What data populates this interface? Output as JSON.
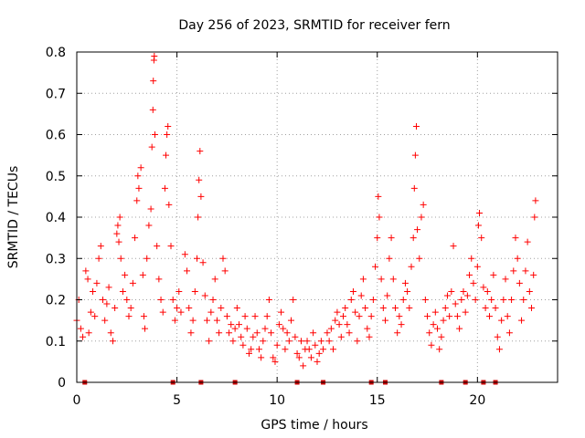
{
  "chart_data": {
    "type": "scatter",
    "title": "Day 256 of 2023, SRMTID for receiver fern",
    "xlabel": "GPS time / hours",
    "ylabel": "SRMTID / TECUs",
    "xlim": [
      0,
      24
    ],
    "ylim": [
      0,
      0.8
    ],
    "xticks": [
      0,
      5,
      10,
      15,
      20
    ],
    "xtick_labels": [
      "0",
      "5",
      "10",
      "15",
      "20"
    ],
    "yticks": [
      0,
      0.1,
      0.2,
      0.3,
      0.4,
      0.5,
      0.6,
      0.7,
      0.8
    ],
    "ytick_labels": [
      "0",
      "0.1",
      "0.2",
      "0.3",
      "0.4",
      "0.5",
      "0.6",
      "0.7",
      "0.8"
    ],
    "grid": true,
    "marker": "plus",
    "color": "#ff0000",
    "flag_color": "#cc0000",
    "baseline_flags_x": [
      0.4,
      4.8,
      6.2,
      7.9,
      11.0,
      12.3,
      14.7,
      15.4,
      18.2,
      19.4,
      20.3,
      20.9
    ],
    "series": [
      {
        "name": "SRMTID",
        "points": [
          [
            0.0,
            0.15
          ],
          [
            0.1,
            0.2
          ],
          [
            0.2,
            0.13
          ],
          [
            0.3,
            0.11
          ],
          [
            0.45,
            0.27
          ],
          [
            0.55,
            0.25
          ],
          [
            0.6,
            0.12
          ],
          [
            0.7,
            0.17
          ],
          [
            0.8,
            0.22
          ],
          [
            0.9,
            0.16
          ],
          [
            1.0,
            0.24
          ],
          [
            1.1,
            0.3
          ],
          [
            1.2,
            0.33
          ],
          [
            1.3,
            0.2
          ],
          [
            1.4,
            0.15
          ],
          [
            1.5,
            0.19
          ],
          [
            1.6,
            0.23
          ],
          [
            1.7,
            0.12
          ],
          [
            1.8,
            0.1
          ],
          [
            1.9,
            0.18
          ],
          [
            2.0,
            0.36
          ],
          [
            2.05,
            0.38
          ],
          [
            2.1,
            0.34
          ],
          [
            2.15,
            0.4
          ],
          [
            2.2,
            0.3
          ],
          [
            2.3,
            0.22
          ],
          [
            2.4,
            0.26
          ],
          [
            2.5,
            0.2
          ],
          [
            2.6,
            0.16
          ],
          [
            2.7,
            0.18
          ],
          [
            2.8,
            0.24
          ],
          [
            2.9,
            0.35
          ],
          [
            3.0,
            0.44
          ],
          [
            3.05,
            0.5
          ],
          [
            3.1,
            0.47
          ],
          [
            3.2,
            0.52
          ],
          [
            3.3,
            0.26
          ],
          [
            3.35,
            0.16
          ],
          [
            3.4,
            0.13
          ],
          [
            3.5,
            0.3
          ],
          [
            3.6,
            0.38
          ],
          [
            3.7,
            0.42
          ],
          [
            3.75,
            0.57
          ],
          [
            3.8,
            0.66
          ],
          [
            3.82,
            0.73
          ],
          [
            3.85,
            0.78
          ],
          [
            3.87,
            0.79
          ],
          [
            3.9,
            0.6
          ],
          [
            4.0,
            0.33
          ],
          [
            4.1,
            0.25
          ],
          [
            4.2,
            0.2
          ],
          [
            4.3,
            0.17
          ],
          [
            4.4,
            0.47
          ],
          [
            4.45,
            0.55
          ],
          [
            4.5,
            0.6
          ],
          [
            4.55,
            0.62
          ],
          [
            4.6,
            0.43
          ],
          [
            4.7,
            0.33
          ],
          [
            4.8,
            0.2
          ],
          [
            4.9,
            0.15
          ],
          [
            5.0,
            0.18
          ],
          [
            5.1,
            0.22
          ],
          [
            5.2,
            0.17
          ],
          [
            5.4,
            0.31
          ],
          [
            5.5,
            0.27
          ],
          [
            5.6,
            0.18
          ],
          [
            5.7,
            0.12
          ],
          [
            5.8,
            0.15
          ],
          [
            5.9,
            0.22
          ],
          [
            6.0,
            0.3
          ],
          [
            6.05,
            0.4
          ],
          [
            6.1,
            0.49
          ],
          [
            6.15,
            0.56
          ],
          [
            6.2,
            0.45
          ],
          [
            6.3,
            0.29
          ],
          [
            6.4,
            0.21
          ],
          [
            6.5,
            0.15
          ],
          [
            6.6,
            0.1
          ],
          [
            6.7,
            0.17
          ],
          [
            6.8,
            0.2
          ],
          [
            6.9,
            0.25
          ],
          [
            7.0,
            0.15
          ],
          [
            7.1,
            0.12
          ],
          [
            7.2,
            0.18
          ],
          [
            7.3,
            0.3
          ],
          [
            7.4,
            0.27
          ],
          [
            7.5,
            0.16
          ],
          [
            7.6,
            0.12
          ],
          [
            7.7,
            0.14
          ],
          [
            7.8,
            0.1
          ],
          [
            7.9,
            0.13
          ],
          [
            8.0,
            0.18
          ],
          [
            8.1,
            0.14
          ],
          [
            8.2,
            0.11
          ],
          [
            8.3,
            0.09
          ],
          [
            8.4,
            0.16
          ],
          [
            8.5,
            0.13
          ],
          [
            8.6,
            0.07
          ],
          [
            8.7,
            0.08
          ],
          [
            8.8,
            0.11
          ],
          [
            8.9,
            0.16
          ],
          [
            9.0,
            0.12
          ],
          [
            9.1,
            0.08
          ],
          [
            9.2,
            0.06
          ],
          [
            9.3,
            0.1
          ],
          [
            9.4,
            0.13
          ],
          [
            9.5,
            0.16
          ],
          [
            9.6,
            0.2
          ],
          [
            9.7,
            0.12
          ],
          [
            9.8,
            0.06
          ],
          [
            9.9,
            0.05
          ],
          [
            10.0,
            0.09
          ],
          [
            10.1,
            0.14
          ],
          [
            10.2,
            0.17
          ],
          [
            10.3,
            0.13
          ],
          [
            10.4,
            0.08
          ],
          [
            10.5,
            0.12
          ],
          [
            10.6,
            0.1
          ],
          [
            10.7,
            0.15
          ],
          [
            10.8,
            0.2
          ],
          [
            10.9,
            0.11
          ],
          [
            11.0,
            0.07
          ],
          [
            11.1,
            0.06
          ],
          [
            11.2,
            0.1
          ],
          [
            11.3,
            0.04
          ],
          [
            11.4,
            0.08
          ],
          [
            11.5,
            0.1
          ],
          [
            11.6,
            0.08
          ],
          [
            11.7,
            0.06
          ],
          [
            11.8,
            0.12
          ],
          [
            11.9,
            0.09
          ],
          [
            12.0,
            0.05
          ],
          [
            12.1,
            0.07
          ],
          [
            12.2,
            0.1
          ],
          [
            12.3,
            0.08
          ],
          [
            12.5,
            0.12
          ],
          [
            12.6,
            0.1
          ],
          [
            12.7,
            0.13
          ],
          [
            12.8,
            0.08
          ],
          [
            12.9,
            0.15
          ],
          [
            13.0,
            0.17
          ],
          [
            13.1,
            0.14
          ],
          [
            13.2,
            0.11
          ],
          [
            13.3,
            0.16
          ],
          [
            13.4,
            0.18
          ],
          [
            13.5,
            0.14
          ],
          [
            13.6,
            0.12
          ],
          [
            13.7,
            0.2
          ],
          [
            13.8,
            0.22
          ],
          [
            13.9,
            0.17
          ],
          [
            14.0,
            0.1
          ],
          [
            14.1,
            0.16
          ],
          [
            14.2,
            0.21
          ],
          [
            14.3,
            0.25
          ],
          [
            14.4,
            0.18
          ],
          [
            14.5,
            0.13
          ],
          [
            14.6,
            0.11
          ],
          [
            14.7,
            0.16
          ],
          [
            14.8,
            0.2
          ],
          [
            14.9,
            0.28
          ],
          [
            15.0,
            0.35
          ],
          [
            15.05,
            0.45
          ],
          [
            15.1,
            0.4
          ],
          [
            15.2,
            0.25
          ],
          [
            15.3,
            0.18
          ],
          [
            15.4,
            0.15
          ],
          [
            15.5,
            0.21
          ],
          [
            15.6,
            0.3
          ],
          [
            15.7,
            0.35
          ],
          [
            15.8,
            0.25
          ],
          [
            15.9,
            0.18
          ],
          [
            16.0,
            0.12
          ],
          [
            16.1,
            0.16
          ],
          [
            16.2,
            0.14
          ],
          [
            16.3,
            0.2
          ],
          [
            16.4,
            0.24
          ],
          [
            16.5,
            0.22
          ],
          [
            16.6,
            0.18
          ],
          [
            16.7,
            0.28
          ],
          [
            16.8,
            0.35
          ],
          [
            16.85,
            0.47
          ],
          [
            16.9,
            0.55
          ],
          [
            16.95,
            0.62
          ],
          [
            17.0,
            0.37
          ],
          [
            17.1,
            0.3
          ],
          [
            17.2,
            0.4
          ],
          [
            17.3,
            0.43
          ],
          [
            17.4,
            0.2
          ],
          [
            17.5,
            0.16
          ],
          [
            17.6,
            0.12
          ],
          [
            17.7,
            0.09
          ],
          [
            17.8,
            0.14
          ],
          [
            17.9,
            0.17
          ],
          [
            18.0,
            0.13
          ],
          [
            18.1,
            0.08
          ],
          [
            18.2,
            0.11
          ],
          [
            18.3,
            0.15
          ],
          [
            18.4,
            0.18
          ],
          [
            18.5,
            0.21
          ],
          [
            18.6,
            0.16
          ],
          [
            18.7,
            0.22
          ],
          [
            18.8,
            0.33
          ],
          [
            18.9,
            0.19
          ],
          [
            19.0,
            0.16
          ],
          [
            19.1,
            0.13
          ],
          [
            19.2,
            0.2
          ],
          [
            19.3,
            0.22
          ],
          [
            19.4,
            0.17
          ],
          [
            19.5,
            0.21
          ],
          [
            19.6,
            0.26
          ],
          [
            19.7,
            0.3
          ],
          [
            19.8,
            0.24
          ],
          [
            19.9,
            0.2
          ],
          [
            20.0,
            0.28
          ],
          [
            20.05,
            0.38
          ],
          [
            20.1,
            0.41
          ],
          [
            20.2,
            0.35
          ],
          [
            20.3,
            0.23
          ],
          [
            20.4,
            0.18
          ],
          [
            20.5,
            0.22
          ],
          [
            20.6,
            0.16
          ],
          [
            20.7,
            0.2
          ],
          [
            20.8,
            0.26
          ],
          [
            20.9,
            0.18
          ],
          [
            21.0,
            0.11
          ],
          [
            21.1,
            0.08
          ],
          [
            21.2,
            0.15
          ],
          [
            21.3,
            0.2
          ],
          [
            21.4,
            0.25
          ],
          [
            21.5,
            0.16
          ],
          [
            21.6,
            0.12
          ],
          [
            21.7,
            0.2
          ],
          [
            21.8,
            0.27
          ],
          [
            21.9,
            0.35
          ],
          [
            22.0,
            0.3
          ],
          [
            22.1,
            0.24
          ],
          [
            22.2,
            0.15
          ],
          [
            22.3,
            0.2
          ],
          [
            22.4,
            0.27
          ],
          [
            22.5,
            0.34
          ],
          [
            22.6,
            0.22
          ],
          [
            22.7,
            0.18
          ],
          [
            22.8,
            0.26
          ],
          [
            22.85,
            0.4
          ],
          [
            22.9,
            0.44
          ]
        ]
      }
    ]
  }
}
